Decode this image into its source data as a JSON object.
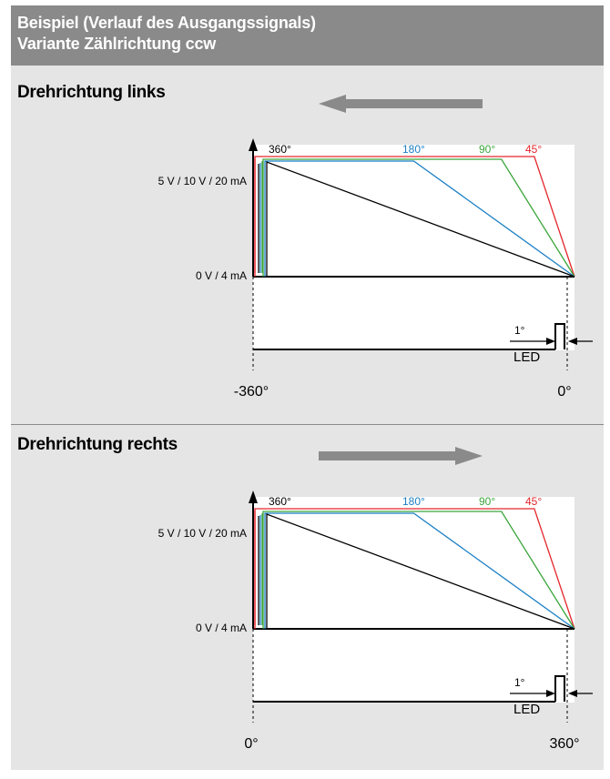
{
  "header": {
    "line1": "Beispiel (Verlauf des Ausgangssignals)",
    "line2": "Variante Zählrichtung ccw"
  },
  "sections": [
    {
      "title": "Drehrichtung links",
      "arrow_direction": "left",
      "x_axis_start_label": "-360°",
      "x_axis_end_label": "0°"
    },
    {
      "title": "Drehrichtung rechts",
      "arrow_direction": "right",
      "x_axis_start_label": "0°",
      "x_axis_end_label": "360°"
    }
  ],
  "chart": {
    "y_top_label": "5 V / 10 V / 20 mA",
    "y_bottom_label": "0 V / 4 mA",
    "led_label": "LED",
    "led_angle_label": "1°",
    "series": [
      {
        "name": "360°",
        "color": "#000000",
        "start_fraction": 0.0
      },
      {
        "name": "180°",
        "color": "#1a7fc4",
        "start_fraction": 0.5
      },
      {
        "name": "90°",
        "color": "#3aa53a",
        "start_fraction": 0.75
      },
      {
        "name": "45°",
        "color": "#e3262b",
        "start_fraction": 0.875
      }
    ]
  },
  "colors": {
    "header_bg": "#8a8a8a",
    "panel_bg": "#e5e5e5",
    "arrow": "#8a8a8a"
  }
}
